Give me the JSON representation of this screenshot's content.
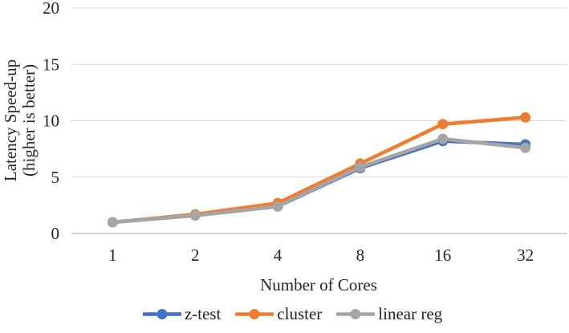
{
  "chart_data": {
    "type": "line",
    "title": "",
    "xlabel": "Number of Cores",
    "ylabel_line1": "Latency Speed-up",
    "ylabel_line2": "(higher is better)",
    "categories": [
      "1",
      "2",
      "4",
      "8",
      "16",
      "32"
    ],
    "series": [
      {
        "name": "z-test",
        "color": "#4472C4",
        "values": [
          1.0,
          1.6,
          2.4,
          5.8,
          8.2,
          7.9
        ]
      },
      {
        "name": "cluster",
        "color": "#ED7D31",
        "values": [
          1.0,
          1.7,
          2.7,
          6.2,
          9.7,
          10.3
        ]
      },
      {
        "name": "linear reg",
        "color": "#A5A5A5",
        "values": [
          1.0,
          1.6,
          2.4,
          5.9,
          8.4,
          7.6
        ]
      }
    ],
    "ylim": [
      0,
      20
    ],
    "yticks": [
      0,
      5,
      10,
      15,
      20
    ],
    "grid": true,
    "legend_position": "bottom"
  },
  "colors": {
    "grid": "#D9D9D9",
    "axis": "#C6C6C6",
    "text": "#262626"
  }
}
